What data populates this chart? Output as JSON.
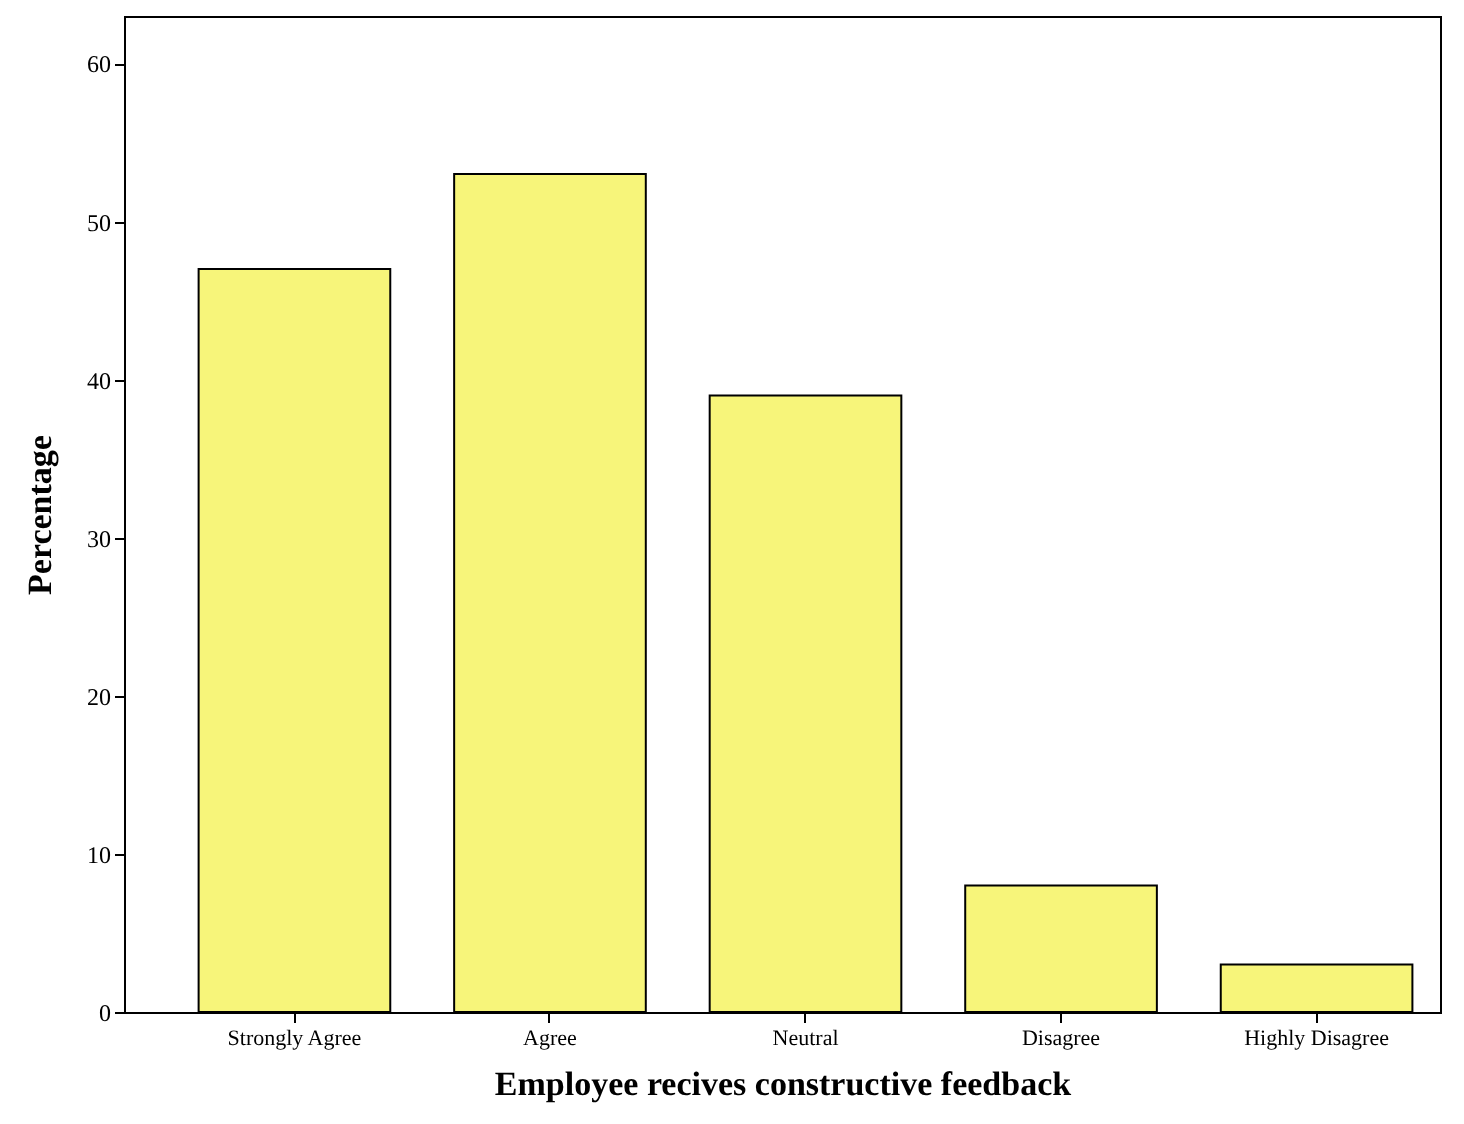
{
  "chart_data": {
    "type": "bar",
    "xlabel": "Employee recives constructive feedback",
    "ylabel": "Percentage",
    "categories": [
      "Strongly Agree",
      "Agree",
      "Neutral",
      "Disagree",
      "Highly Disagree"
    ],
    "values": [
      47,
      53,
      39,
      8,
      3
    ],
    "color": "#f7f57a",
    "ylim": [
      0,
      63
    ],
    "yticks": [
      0,
      10,
      20,
      30,
      40,
      50,
      60
    ],
    "grid": false
  }
}
